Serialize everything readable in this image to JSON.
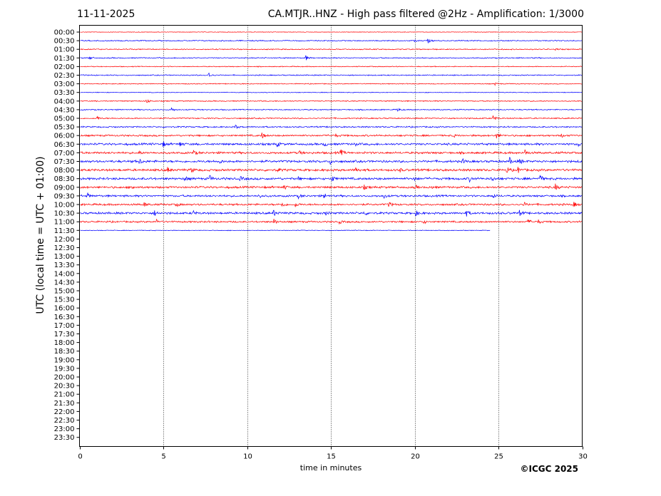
{
  "header": {
    "date": "11-11-2025",
    "title": "CA.MTJR..HNZ - High pass filtered @2Hz - Amplification: 1/3000"
  },
  "footer": {
    "copyright": "©ICGC 2025"
  },
  "chart_data": {
    "type": "line",
    "title": "CA.MTJR..HNZ - High pass filtered @2Hz - Amplification: 1/3000",
    "xlabel": "time in minutes",
    "ylabel": "UTC (local time = UTC + 01:00)",
    "xlim": [
      0,
      30
    ],
    "x_ticks": [
      0,
      5,
      10,
      15,
      20,
      25,
      30
    ],
    "grid": "vertical dotted lines at x ticks",
    "y_ticks": [
      "00:00",
      "00:30",
      "01:00",
      "01:30",
      "02:00",
      "02:30",
      "03:00",
      "03:30",
      "04:00",
      "04:30",
      "05:00",
      "05:30",
      "06:00",
      "06:30",
      "07:00",
      "07:30",
      "08:00",
      "08:30",
      "09:00",
      "09:30",
      "10:00",
      "10:30",
      "11:00",
      "11:30",
      "12:00",
      "12:30",
      "13:00",
      "13:30",
      "14:00",
      "14:30",
      "15:00",
      "15:30",
      "16:00",
      "16:30",
      "17:00",
      "17:30",
      "18:00",
      "18:30",
      "19:00",
      "19:30",
      "20:00",
      "20:30",
      "21:00",
      "21:30",
      "22:00",
      "22:30",
      "23:00",
      "23:30"
    ],
    "trace_colors": [
      "#ff0000",
      "#0000ff"
    ],
    "traces": [
      {
        "start": "00:00",
        "end_minute": 30,
        "color": "#ff0000",
        "noise": 0.3,
        "events": []
      },
      {
        "start": "00:30",
        "end_minute": 30,
        "color": "#0000ff",
        "noise": 0.6,
        "events": [
          [
            20,
            1.2
          ],
          [
            20.8,
            3
          ]
        ]
      },
      {
        "start": "01:00",
        "end_minute": 30,
        "color": "#ff0000",
        "noise": 0.6,
        "events": [
          [
            28.4,
            1.5
          ]
        ]
      },
      {
        "start": "01:30",
        "end_minute": 30,
        "color": "#0000ff",
        "noise": 0.6,
        "events": [
          [
            0.6,
            2.5
          ],
          [
            13.5,
            3.5
          ]
        ]
      },
      {
        "start": "02:00",
        "end_minute": 30,
        "color": "#ff0000",
        "noise": 0.5,
        "events": []
      },
      {
        "start": "02:30",
        "end_minute": 30,
        "color": "#0000ff",
        "noise": 0.6,
        "events": [
          [
            7.7,
            4
          ]
        ]
      },
      {
        "start": "03:00",
        "end_minute": 30,
        "color": "#ff0000",
        "noise": 0.5,
        "events": [
          [
            24.8,
            2
          ]
        ]
      },
      {
        "start": "03:30",
        "end_minute": 30,
        "color": "#0000ff",
        "noise": 0.4,
        "events": []
      },
      {
        "start": "04:00",
        "end_minute": 30,
        "color": "#ff0000",
        "noise": 0.6,
        "events": [
          [
            4,
            4
          ]
        ]
      },
      {
        "start": "04:30",
        "end_minute": 30,
        "color": "#0000ff",
        "noise": 0.6,
        "events": [
          [
            5.5,
            3
          ],
          [
            19,
            2
          ]
        ]
      },
      {
        "start": "05:00",
        "end_minute": 30,
        "color": "#ff0000",
        "noise": 0.7,
        "events": [
          [
            1.1,
            2.5
          ],
          [
            24.7,
            4
          ]
        ]
      },
      {
        "start": "05:30",
        "end_minute": 30,
        "color": "#0000ff",
        "noise": 0.8,
        "events": [
          [
            9.3,
            3
          ]
        ]
      },
      {
        "start": "06:00",
        "end_minute": 30,
        "color": "#ff0000",
        "noise": 1.0,
        "events": [
          [
            10.9,
            4
          ],
          [
            15.3,
            2
          ],
          [
            22.3,
            2
          ],
          [
            24.9,
            4
          ],
          [
            28.8,
            2
          ]
        ]
      },
      {
        "start": "06:30",
        "end_minute": 30,
        "color": "#0000ff",
        "noise": 1.2,
        "events": [
          [
            5,
            3
          ],
          [
            6,
            3.5
          ],
          [
            11.8,
            3
          ],
          [
            14.6,
            3.5
          ],
          [
            16.4,
            2
          ],
          [
            29.8,
            2.5
          ]
        ]
      },
      {
        "start": "07:00",
        "end_minute": 30,
        "color": "#ff0000",
        "noise": 1.2,
        "events": [
          [
            3.5,
            3
          ],
          [
            6.8,
            3
          ],
          [
            13.1,
            3
          ],
          [
            15.6,
            4
          ],
          [
            26.6,
            4
          ]
        ]
      },
      {
        "start": "07:30",
        "end_minute": 30,
        "color": "#0000ff",
        "noise": 1.3,
        "events": [
          [
            3.6,
            3
          ],
          [
            8.3,
            3.5
          ],
          [
            15,
            3
          ],
          [
            22.9,
            3
          ],
          [
            25.7,
            4
          ],
          [
            26.3,
            2.5
          ]
        ]
      },
      {
        "start": "08:00",
        "end_minute": 30,
        "color": "#ff0000",
        "noise": 1.3,
        "events": [
          [
            5.3,
            3
          ],
          [
            6.7,
            3
          ],
          [
            11.8,
            3
          ],
          [
            16.5,
            4
          ],
          [
            19.1,
            2.5
          ],
          [
            25.5,
            4
          ],
          [
            26.2,
            3.5
          ]
        ]
      },
      {
        "start": "08:30",
        "end_minute": 30,
        "color": "#0000ff",
        "noise": 1.3,
        "events": [
          [
            6.3,
            3
          ],
          [
            7.8,
            3.5
          ],
          [
            9.6,
            3
          ],
          [
            13,
            3
          ],
          [
            15.1,
            3
          ],
          [
            20,
            3
          ],
          [
            23.3,
            3
          ],
          [
            24.6,
            3.5
          ],
          [
            27.5,
            4
          ]
        ]
      },
      {
        "start": "09:00",
        "end_minute": 30,
        "color": "#ff0000",
        "noise": 1.2,
        "events": [
          [
            3.1,
            3
          ],
          [
            12.2,
            3
          ],
          [
            17,
            2.5
          ],
          [
            20,
            3.5
          ],
          [
            20.9,
            3
          ],
          [
            28.4,
            4
          ]
        ]
      },
      {
        "start": "09:30",
        "end_minute": 30,
        "color": "#0000ff",
        "noise": 1.1,
        "events": [
          [
            0.5,
            3
          ],
          [
            10.7,
            3
          ],
          [
            13.1,
            2.5
          ],
          [
            14.6,
            4
          ],
          [
            18.2,
            2.5
          ],
          [
            24.7,
            3
          ]
        ]
      },
      {
        "start": "10:00",
        "end_minute": 30,
        "color": "#ff0000",
        "noise": 1.1,
        "events": [
          [
            3.9,
            3
          ],
          [
            5.8,
            2.5
          ],
          [
            12.1,
            3
          ],
          [
            12.9,
            3
          ],
          [
            18.5,
            3
          ],
          [
            26.5,
            3
          ],
          [
            29.5,
            3.5
          ]
        ]
      },
      {
        "start": "10:30",
        "end_minute": 30,
        "color": "#0000ff",
        "noise": 1.2,
        "events": [
          [
            4.5,
            3
          ],
          [
            6.8,
            3
          ],
          [
            11.6,
            4
          ],
          [
            14.7,
            2.5
          ],
          [
            17,
            2.5
          ],
          [
            20.1,
            3
          ],
          [
            23.1,
            3.5
          ],
          [
            26.3,
            3
          ]
        ]
      },
      {
        "start": "11:00",
        "end_minute": 30,
        "color": "#ff0000",
        "noise": 1.0,
        "events": [
          [
            4.6,
            2.5
          ],
          [
            11.6,
            4
          ],
          [
            15.5,
            2.5
          ],
          [
            20.5,
            3
          ],
          [
            26.8,
            2.5
          ],
          [
            27.4,
            2.5
          ]
        ]
      },
      {
        "start": "11:30",
        "end_minute": 24.5,
        "color": "#0000ff",
        "noise": 0.4,
        "events": []
      }
    ]
  }
}
